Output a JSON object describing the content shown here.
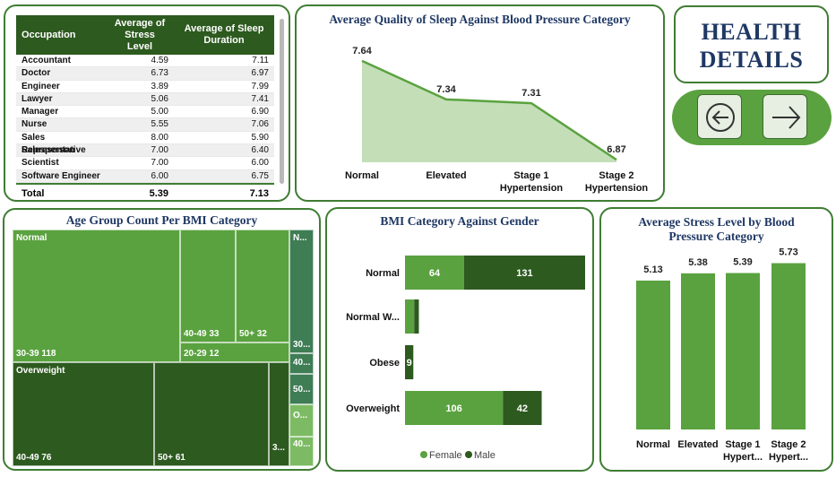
{
  "table": {
    "headers": [
      "Occupation",
      "Average of Stress Level",
      "Average of Sleep Duration"
    ],
    "rows": [
      [
        "Accountant",
        "4.59",
        "7.11"
      ],
      [
        "Doctor",
        "6.73",
        "6.97"
      ],
      [
        "Engineer",
        "3.89",
        "7.99"
      ],
      [
        "Lawyer",
        "5.06",
        "7.41"
      ],
      [
        "Manager",
        "5.00",
        "6.90"
      ],
      [
        "Nurse",
        "5.55",
        "7.06"
      ],
      [
        "Sales Representative",
        "8.00",
        "5.90"
      ],
      [
        "Salesperson",
        "7.00",
        "6.40"
      ],
      [
        "Scientist",
        "7.00",
        "6.00"
      ],
      [
        "Software Engineer",
        "6.00",
        "6.75"
      ]
    ],
    "total": [
      "Total",
      "5.39",
      "7.13"
    ]
  },
  "header": {
    "line1": "HEALTH",
    "line2": "DETAILS"
  },
  "nav": {
    "back_icon": "arrow-left-circle-icon",
    "next_icon": "arrow-right-icon"
  },
  "colors": {
    "light": "#5aa23f",
    "dark": "#2d5a1f",
    "area": "#c4dfb8",
    "title": "#1f3864",
    "border": "#3f7d33"
  },
  "chart_data": [
    {
      "id": "sleep",
      "type": "area",
      "title": "Average Quality of Sleep Against Blood Pressure Category",
      "categories": [
        [
          "Normal"
        ],
        [
          "Elevated"
        ],
        [
          "Stage 1",
          "Hypertension"
        ],
        [
          "Stage 2",
          "Hypertension"
        ]
      ],
      "values": [
        7.64,
        7.34,
        7.31,
        6.87
      ],
      "value_labels": [
        "7.64",
        "7.34",
        "7.31",
        "6.87"
      ],
      "ylim": [
        6.85,
        7.66
      ]
    },
    {
      "id": "tree",
      "type": "treemap",
      "title": "Age Group Count Per BMI Category",
      "groups": [
        {
          "name": "Normal",
          "cells": [
            {
              "label": "30-39 118",
              "value": 118
            },
            {
              "label": "40-49 33",
              "value": 33
            },
            {
              "label": "20-29 12",
              "value": 12
            },
            {
              "label": "50+ 32",
              "value": 32
            }
          ]
        },
        {
          "name": "Overweight",
          "cells": [
            {
              "label": "40-49 76",
              "value": 76
            },
            {
              "label": "50+ 61",
              "value": 61
            },
            {
              "label": "3...",
              "value": 11
            }
          ]
        }
      ],
      "side_labels": [
        "N...",
        "30...",
        "40...",
        "50...",
        "O...",
        "40..."
      ]
    },
    {
      "id": "bmigen",
      "type": "bar",
      "orientation": "horizontal",
      "stacked": true,
      "title": "BMI Category Against Gender",
      "categories": [
        "Normal",
        "Normal W...",
        "Obese",
        "Overweight"
      ],
      "series": [
        {
          "name": "Female",
          "values": [
            64,
            10,
            0,
            106
          ],
          "labels": [
            "64",
            "",
            "",
            "106"
          ]
        },
        {
          "name": "Male",
          "values": [
            131,
            5,
            9,
            42
          ],
          "labels": [
            "131",
            "",
            "9",
            "42"
          ]
        }
      ],
      "xlim": [
        0,
        200
      ],
      "legend": "bottom"
    },
    {
      "id": "stress",
      "type": "bar",
      "title": "Average Stress Level by Blood Pressure Category",
      "categories": [
        [
          "Normal"
        ],
        [
          "Elevated"
        ],
        [
          "Stage 1",
          "Hypert..."
        ],
        [
          "Stage 2",
          "Hypert..."
        ]
      ],
      "values": [
        5.13,
        5.38,
        5.39,
        5.73
      ],
      "value_labels": [
        "5.13",
        "5.38",
        "5.39",
        "5.73"
      ],
      "ylim": [
        0,
        5.9
      ]
    }
  ]
}
